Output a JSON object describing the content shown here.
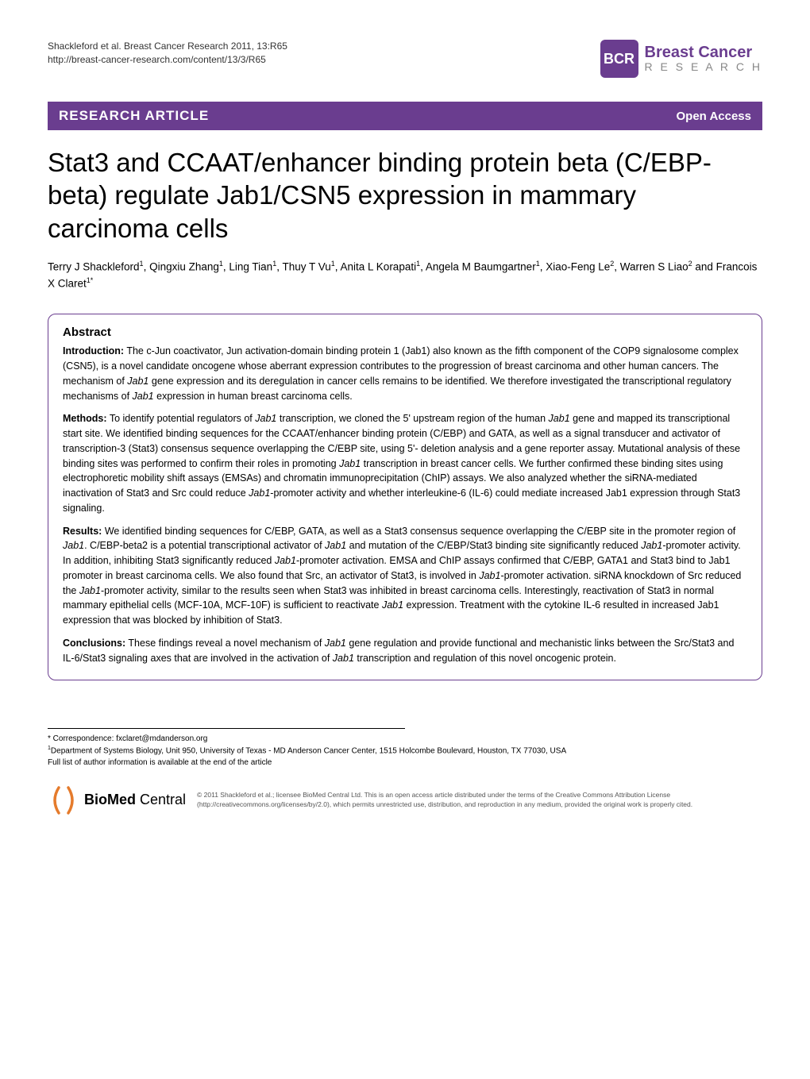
{
  "header": {
    "citation_line1": "Shackleford et al. Breast Cancer Research 2011, 13:R65",
    "citation_line2": "http://breast-cancer-research.com/content/13/3/R65",
    "logo_abbrev": "BCR",
    "logo_top": "Breast Cancer",
    "logo_bottom": "R E S E A R C H",
    "logo_bg": "#6a3d8f"
  },
  "banner": {
    "left": "RESEARCH ARTICLE",
    "right": "Open Access",
    "bg": "#6a3d8f"
  },
  "title": "Stat3 and CCAAT/enhancer binding protein beta (C/EBP-beta) regulate Jab1/CSN5 expression in mammary carcinoma cells",
  "authors_html": "Terry J Shackleford<sup>1</sup>, Qingxiu Zhang<sup>1</sup>, Ling Tian<sup>1</sup>, Thuy T Vu<sup>1</sup>, Anita L Korapati<sup>1</sup>, Angela M Baumgartner<sup>1</sup>, Xiao-Feng Le<sup>2</sup>, Warren S Liao<sup>2</sup> and Francois X Claret<sup>1*</sup>",
  "abstract": {
    "heading": "Abstract",
    "sections": [
      {
        "label": "Introduction:",
        "text_html": "The c-Jun coactivator, Jun activation-domain binding protein 1 (Jab1) also known as the fifth component of the COP9 signalosome complex (CSN5), is a novel candidate oncogene whose aberrant expression contributes to the progression of breast carcinoma and other human cancers. The mechanism of <i>Jab1</i> gene expression and its deregulation in cancer cells remains to be identified. We therefore investigated the transcriptional regulatory mechanisms of <i>Jab1</i> expression in human breast carcinoma cells."
      },
      {
        "label": "Methods:",
        "text_html": "To identify potential regulators of <i>Jab1</i> transcription, we cloned the 5' upstream region of the human <i>Jab1</i> gene and mapped its transcriptional start site. We identified binding sequences for the CCAAT/enhancer binding protein (C/EBP) and GATA, as well as a signal transducer and activator of transcription-3 (Stat3) consensus sequence overlapping the C/EBP site, using 5'- deletion analysis and a gene reporter assay. Mutational analysis of these binding sites was performed to confirm their roles in promoting <i>Jab1</i> transcription in breast cancer cells. We further confirmed these binding sites using electrophoretic mobility shift assays (EMSAs) and chromatin immunoprecipitation (ChIP) assays. We also analyzed whether the siRNA-mediated inactivation of Stat3 and Src could reduce <i>Jab1</i>-promoter activity and whether interleukine-6 (IL-6) could mediate increased Jab1 expression through Stat3 signaling."
      },
      {
        "label": "Results:",
        "text_html": "We identified binding sequences for C/EBP, GATA, as well as a Stat3 consensus sequence overlapping the C/EBP site in the promoter region of <i>Jab1</i>. C/EBP-beta2 is a potential transcriptional activator of <i>Jab1</i> and mutation of the C/EBP/Stat3 binding site significantly reduced <i>Jab1</i>-promoter activity. In addition, inhibiting Stat3 significantly reduced <i>Jab1</i>-promoter activation. EMSA and ChIP assays confirmed that C/EBP, GATA1 and Stat3 bind to Jab1 promoter in breast carcinoma cells. We also found that Src, an activator of Stat3, is involved in <i>Jab1</i>-promoter activation. siRNA knockdown of Src reduced the <i>Jab1</i>-promoter activity, similar to the results seen when Stat3 was inhibited in breast carcinoma cells. Interestingly, reactivation of Stat3 in normal mammary epithelial cells (MCF-10A, MCF-10F) is sufficient to reactivate <i>Jab1</i> expression. Treatment with the cytokine IL-6 resulted in increased Jab1 expression that was blocked by inhibition of Stat3."
      },
      {
        "label": "Conclusions:",
        "text_html": "These findings reveal a novel mechanism of <i>Jab1</i> gene regulation and provide functional and mechanistic links between the Src/Stat3 and IL-6/Stat3 signaling axes that are involved in the activation of <i>Jab1</i> transcription and regulation of this novel oncogenic protein."
      }
    ]
  },
  "footer": {
    "correspondence": "* Correspondence: fxclaret@mdanderson.org",
    "affiliation_html": "<sup>1</sup>Department of Systems Biology, Unit 950, University of Texas - MD Anderson Cancer Center, 1515 Holcombe Boulevard, Houston, TX 77030, USA",
    "full_list": "Full list of author information is available at the end of the article",
    "bmc_bold": "BioMed",
    "bmc_rest": " Central",
    "license": "© 2011 Shackleford et al.; licensee BioMed Central Ltd. This is an open access article distributed under the terms of the Creative Commons Attribution License (http://creativecommons.org/licenses/by/2.0), which permits unrestricted use, distribution, and reproduction in any medium, provided the original work is properly cited."
  },
  "colors": {
    "brand": "#6a3d8f",
    "text": "#000000",
    "muted": "#888888",
    "license_text": "#555555",
    "bmc_orange": "#e57b2c"
  }
}
